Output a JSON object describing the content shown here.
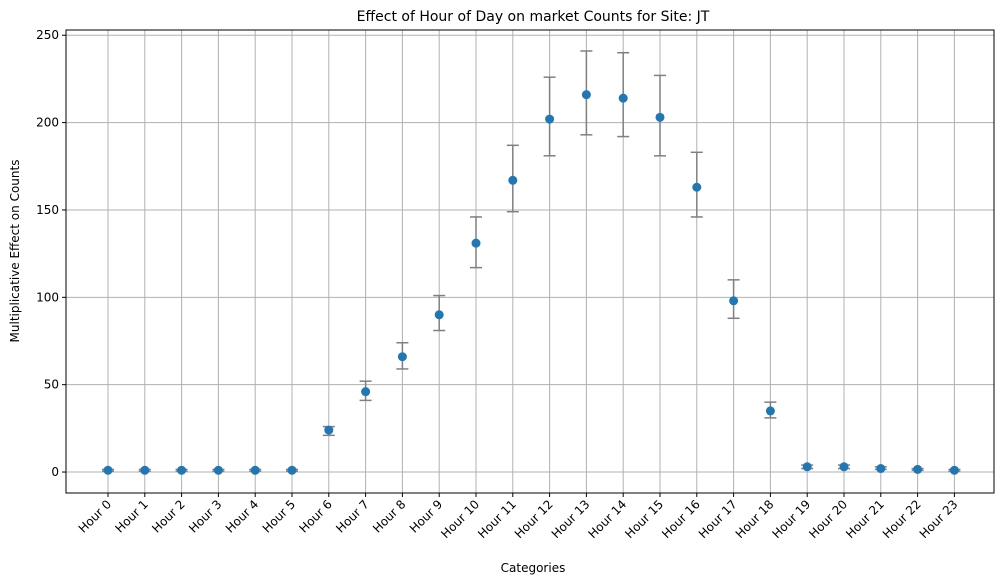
{
  "chart_data": {
    "type": "scatter",
    "title": "Effect of Hour of Day on market Counts for Site: JT",
    "xlabel": "Categories",
    "ylabel": "Multiplicative Effect on Counts",
    "categories": [
      "Hour 0",
      "Hour 1",
      "Hour 2",
      "Hour 3",
      "Hour 4",
      "Hour 5",
      "Hour 6",
      "Hour 7",
      "Hour 8",
      "Hour 9",
      "Hour 10",
      "Hour 11",
      "Hour 12",
      "Hour 13",
      "Hour 14",
      "Hour 15",
      "Hour 16",
      "Hour 17",
      "Hour 18",
      "Hour 19",
      "Hour 20",
      "Hour 21",
      "Hour 22",
      "Hour 23"
    ],
    "values": [
      1,
      1,
      1,
      1,
      1,
      1,
      24,
      46,
      66,
      90,
      131,
      167,
      202,
      216,
      214,
      203,
      163,
      98,
      35,
      3,
      3,
      2,
      1.5,
      1
    ],
    "lower": [
      0.5,
      0.5,
      0.5,
      0.5,
      0.5,
      0.5,
      21,
      41,
      59,
      81,
      117,
      149,
      181,
      193,
      192,
      181,
      146,
      88,
      31,
      2,
      2,
      1.5,
      1,
      0.5
    ],
    "upper": [
      1.5,
      1.5,
      1.5,
      1.5,
      1.5,
      1.5,
      26,
      52,
      74,
      101,
      146,
      187,
      226,
      241,
      240,
      227,
      183,
      110,
      40,
      4,
      4,
      3,
      2,
      1.5
    ],
    "yticks": [
      0,
      50,
      100,
      150,
      200,
      250
    ],
    "ylim": [
      -12,
      253
    ],
    "grid": true,
    "marker_color": "#1f77b4",
    "errorbar_color": "#808080"
  }
}
